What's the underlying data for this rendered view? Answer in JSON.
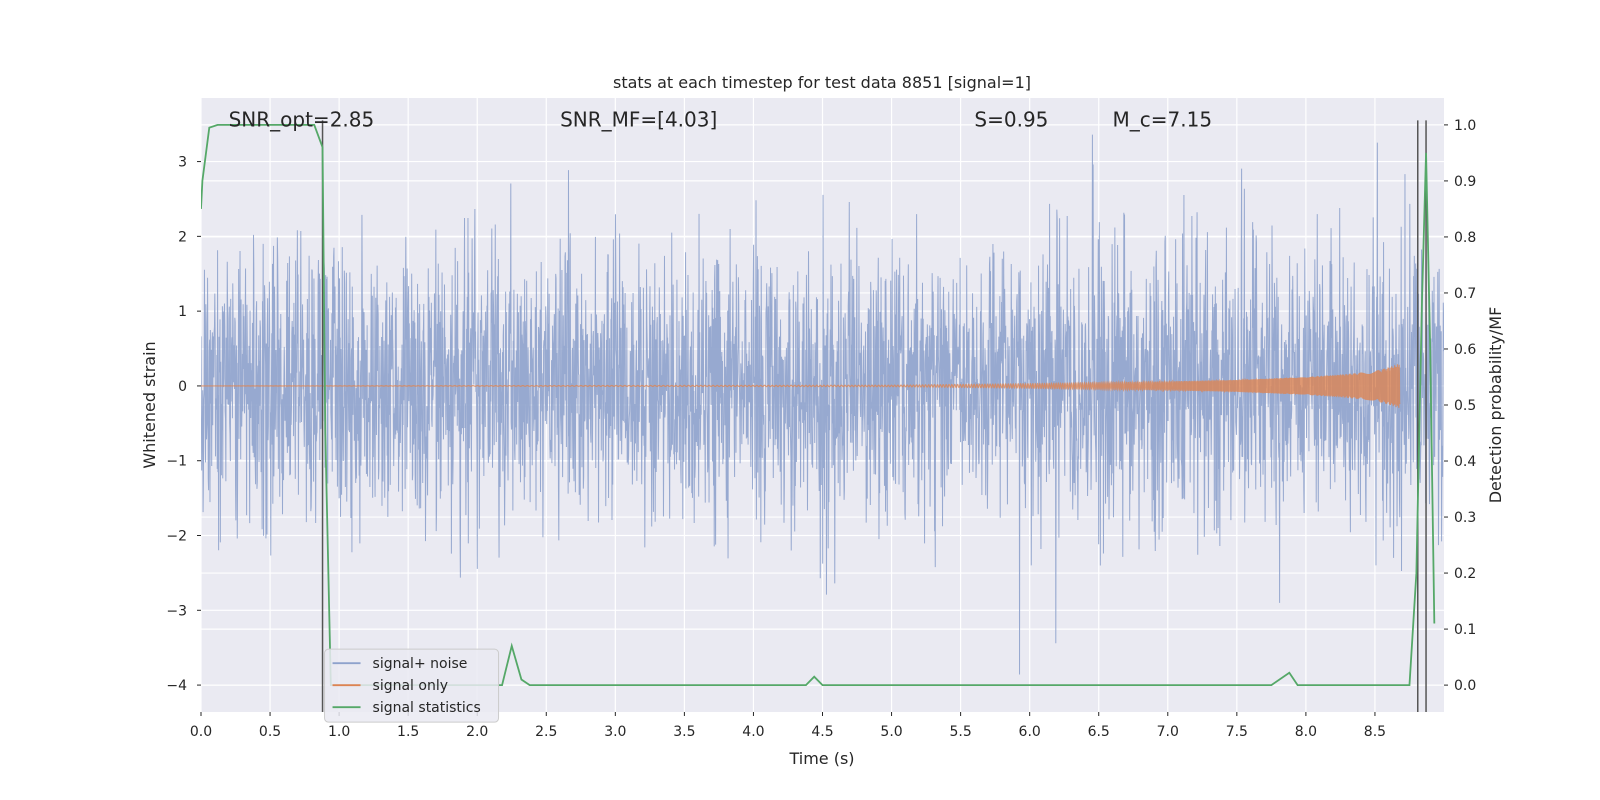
{
  "chart_data": {
    "type": "line",
    "title": "stats at each timestep for test data 8851 [signal=1]",
    "xlabel": "Time (s)",
    "ylabel_left": "Whitened strain",
    "ylabel_right": "Detection probability/MF",
    "xlim": [
      0.0,
      9.0
    ],
    "ylim_left": [
      -4.36,
      3.85
    ],
    "ylim_right": [
      -0.048,
      1.048
    ],
    "xticks": [
      0.0,
      0.5,
      1.0,
      1.5,
      2.0,
      2.5,
      3.0,
      3.5,
      4.0,
      4.5,
      5.0,
      5.5,
      6.0,
      6.5,
      7.0,
      7.5,
      8.0,
      8.5
    ],
    "xtick_labels": [
      "0.0",
      "0.5",
      "1.0",
      "1.5",
      "2.0",
      "2.5",
      "3.0",
      "3.5",
      "4.0",
      "4.5",
      "5.0",
      "5.5",
      "6.0",
      "6.5",
      "7.0",
      "7.5",
      "8.0",
      "8.5"
    ],
    "yticks_left": [
      3,
      2,
      1,
      0,
      -1,
      -2,
      -3,
      -4
    ],
    "ytick_labels_left": [
      "3",
      "2",
      "1",
      "0",
      "−1",
      "−2",
      "−3",
      "−4"
    ],
    "yticks_right": [
      1.0,
      0.9,
      0.8,
      0.7,
      0.6,
      0.5,
      0.4,
      0.3,
      0.2,
      0.1,
      0.0
    ],
    "ytick_labels_right": [
      "1.0",
      "0.9",
      "0.8",
      "0.7",
      "0.6",
      "0.5",
      "0.4",
      "0.3",
      "0.2",
      "0.1",
      "0.0"
    ],
    "grid": true,
    "legend_position": "lower-left",
    "annotations": [
      {
        "text": "SNR_opt=2.85",
        "x": 0.2,
        "y": 3.55
      },
      {
        "text": "SNR_MF=[4.03]",
        "x": 2.6,
        "y": 3.55
      },
      {
        "text": "S=0.95",
        "x": 5.6,
        "y": 3.55
      },
      {
        "text": "M_c=7.15",
        "x": 6.6,
        "y": 3.55
      }
    ],
    "vlines": [
      0.88,
      8.81,
      8.87
    ],
    "series": [
      {
        "name": "signal+ noise",
        "axis": "left",
        "color": "#8ea2cc",
        "kind": "noise",
        "sigma": 0.9,
        "x_range": [
          0.0,
          9.0
        ]
      },
      {
        "name": "signal only",
        "axis": "left",
        "color": "#dd8452",
        "kind": "chirp",
        "x_range": [
          0.0,
          8.68
        ],
        "envelope_x": [
          0.0,
          5.0,
          6.0,
          7.0,
          7.5,
          8.0,
          8.3,
          8.5,
          8.6,
          8.68
        ],
        "envelope_y": [
          0.0,
          0.01,
          0.03,
          0.06,
          0.08,
          0.12,
          0.16,
          0.2,
          0.25,
          0.3
        ]
      },
      {
        "name": "signal statistics",
        "axis": "right",
        "color": "#55a868",
        "kind": "line",
        "x": [
          0.0,
          0.01,
          0.06,
          0.12,
          0.3,
          0.5,
          0.7,
          0.82,
          0.88,
          0.9,
          0.94,
          1.0,
          1.5,
          2.0,
          2.18,
          2.25,
          2.32,
          2.38,
          2.5,
          3.0,
          3.5,
          4.0,
          4.38,
          4.44,
          4.5,
          5.0,
          6.0,
          7.0,
          7.75,
          7.88,
          7.94,
          8.0,
          8.5,
          8.75,
          8.8,
          8.84,
          8.87,
          8.9,
          8.93
        ],
        "y": [
          0.85,
          0.9,
          0.995,
          1.0,
          1.0,
          1.0,
          1.0,
          1.0,
          0.96,
          0.45,
          0.0,
          0.0,
          0.0,
          0.0,
          0.0,
          0.07,
          0.01,
          0.0,
          0.0,
          0.0,
          0.0,
          0.0,
          0.0,
          0.015,
          0.0,
          0.0,
          0.0,
          0.0,
          0.0,
          0.022,
          0.0,
          0.0,
          0.0,
          0.0,
          0.2,
          0.68,
          0.95,
          0.6,
          0.11
        ]
      }
    ]
  }
}
